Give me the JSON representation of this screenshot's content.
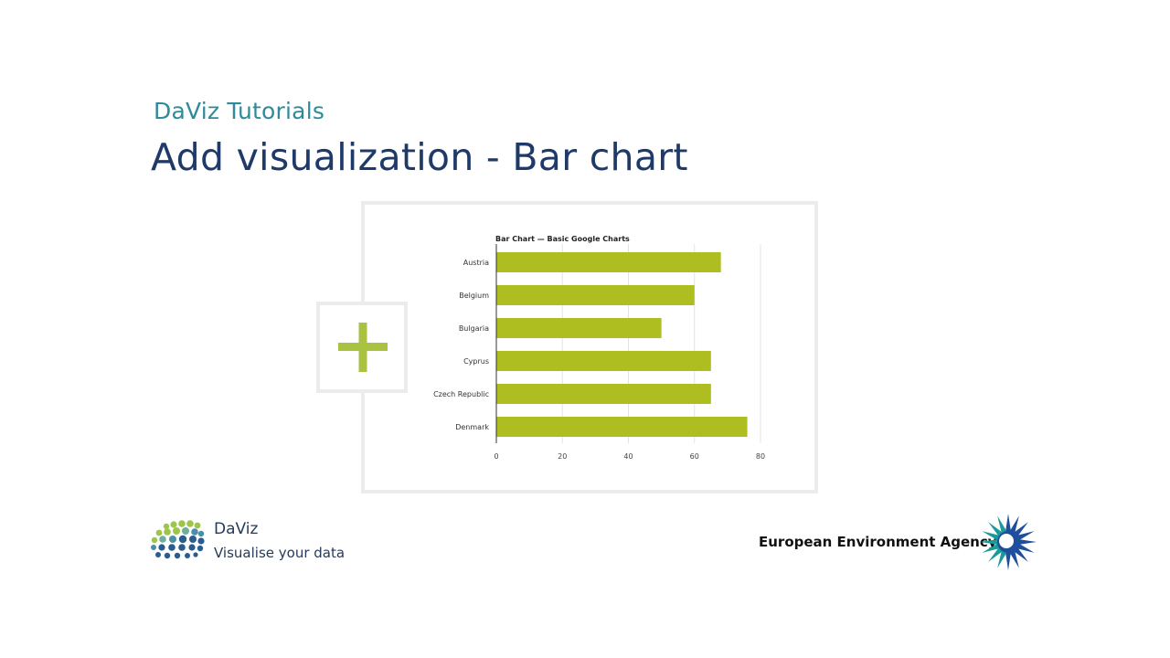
{
  "slide": {
    "subtitle": "DaViz Tutorials",
    "title": "Add visualization - Bar chart"
  },
  "plus_icon": {
    "name": "plus-icon",
    "color": "#a9c23f"
  },
  "chart_data": {
    "type": "bar",
    "orientation": "horizontal",
    "title": "Bar Chart — Basic Google Charts",
    "categories": [
      "Austria",
      "Belgium",
      "Bulgaria",
      "Cyprus",
      "Czech Republic",
      "Denmark"
    ],
    "values": [
      68,
      60,
      50,
      65,
      65,
      76
    ],
    "xlim": [
      0,
      80
    ],
    "xticks": [
      0,
      20,
      40,
      60,
      80
    ],
    "bar_color": "#aebd20",
    "grid": true
  },
  "footer": {
    "daviz_name": "DaViz",
    "daviz_tagline": "Visualise your data",
    "eea_name": "European Environment Agency",
    "colors": {
      "daviz_green": "#9cc54a",
      "daviz_blue": "#2a5d8f",
      "eea_teal": "#1b9a9a",
      "eea_blue": "#1f4f9c"
    }
  }
}
